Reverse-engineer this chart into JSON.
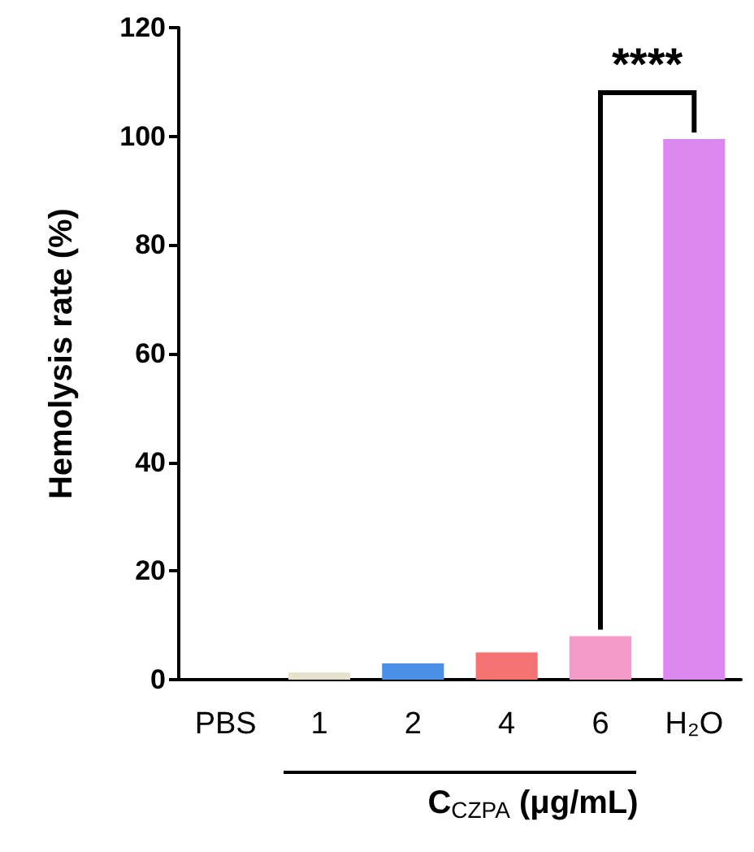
{
  "chart_data": {
    "type": "bar",
    "categories": [
      "PBS",
      "1",
      "2",
      "4",
      "6",
      "H₂O"
    ],
    "values": [
      0,
      1.3,
      3,
      5,
      8,
      99.5
    ],
    "colors": [
      "#e6e2cc",
      "#e6e2cc",
      "#4a90e8",
      "#f47272",
      "#f49ac8",
      "#dd88f0"
    ],
    "xlabel": "C$_{CZPA}$ (μg/mL)",
    "ylabel": "Hemolysis rate (%)",
    "ylim": [
      0,
      120
    ],
    "yticks": [
      0,
      20,
      40,
      60,
      80,
      100,
      120
    ],
    "annotations": [
      "****"
    ],
    "grid": false
  }
}
